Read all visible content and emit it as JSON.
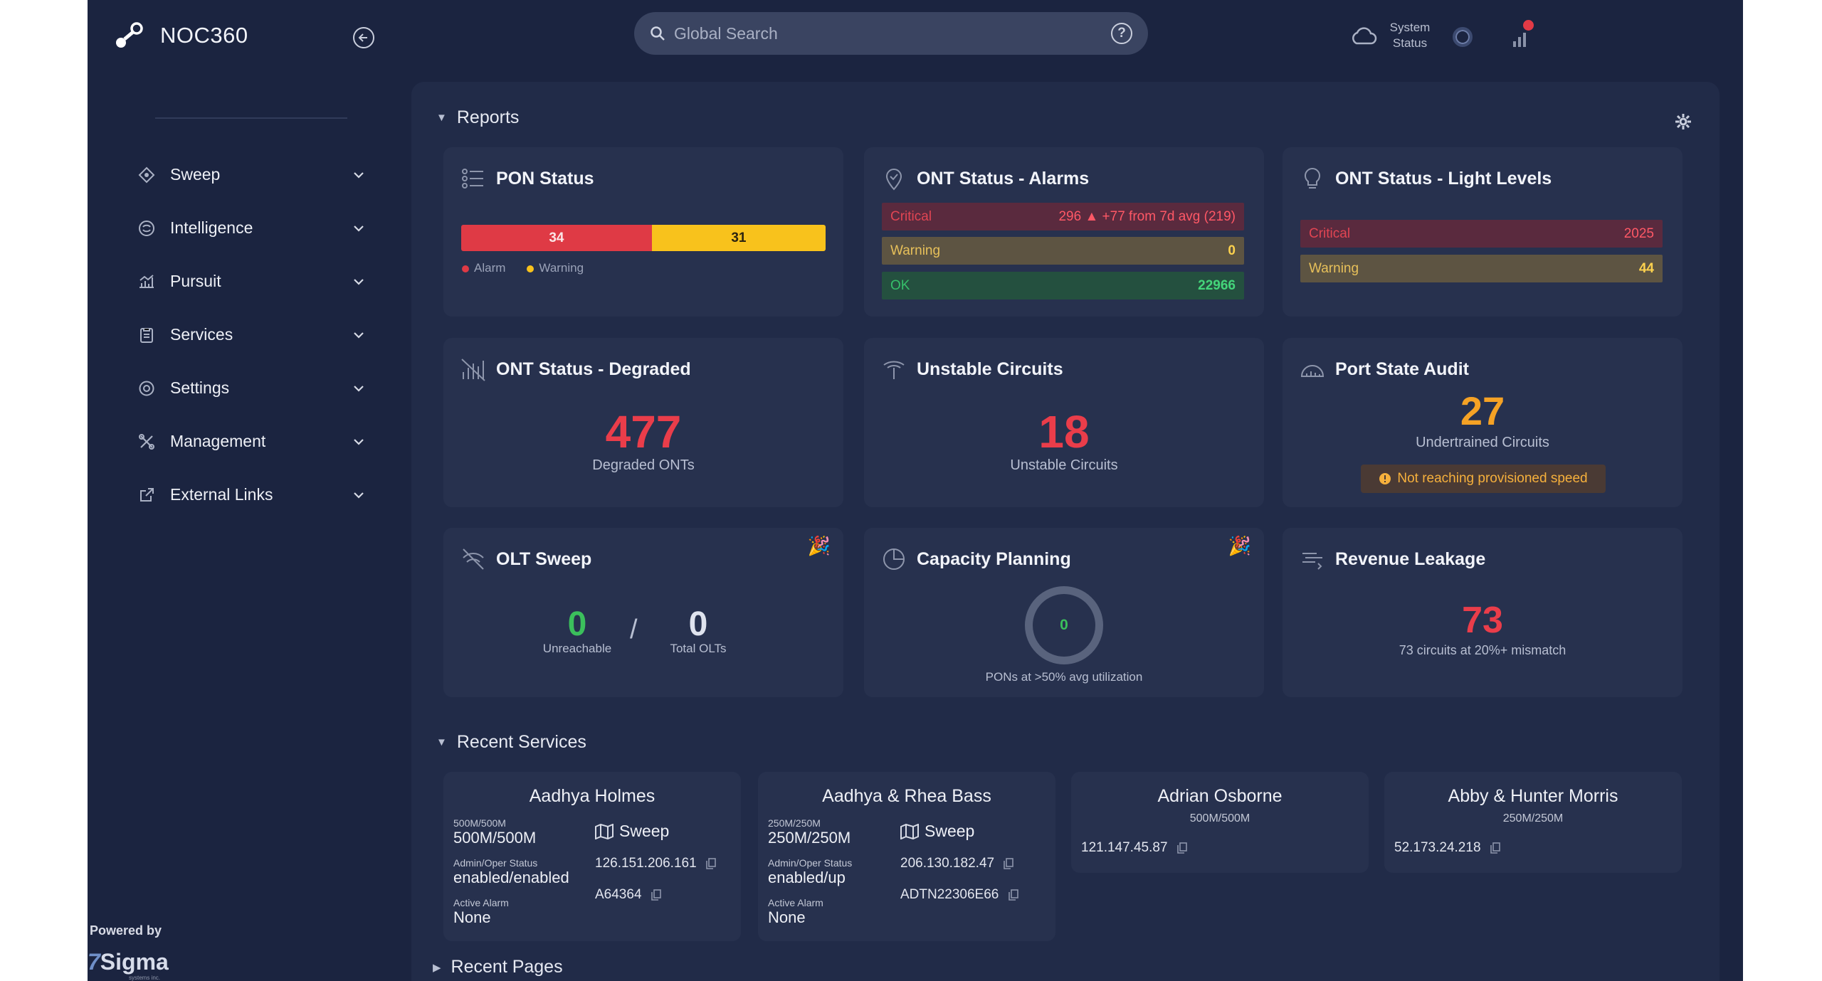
{
  "app": {
    "title": "NOC360"
  },
  "search": {
    "placeholder": "Global Search"
  },
  "header": {
    "system_status_line1": "System",
    "system_status_line2": "Status"
  },
  "sidebar": {
    "items": [
      {
        "label": "Sweep",
        "icon": "sweep-icon"
      },
      {
        "label": "Intelligence",
        "icon": "intelligence-icon"
      },
      {
        "label": "Pursuit",
        "icon": "pursuit-icon"
      },
      {
        "label": "Services",
        "icon": "services-icon"
      },
      {
        "label": "Settings",
        "icon": "settings-icon"
      },
      {
        "label": "Management",
        "icon": "management-icon"
      },
      {
        "label": "External Links",
        "icon": "external-link-icon"
      }
    ],
    "powered_by": "Powered by",
    "brand": {
      "prefix": "7",
      "name": "Sigma",
      "sub": "systems inc."
    }
  },
  "reports": {
    "title": "Reports",
    "pon_status": {
      "title": "PON Status",
      "alarm_value": "34",
      "warning_value": "31",
      "alarm_count": 34,
      "warning_count": 31,
      "legend_alarm": "Alarm",
      "legend_warning": "Warning"
    },
    "ont_alarms": {
      "title": "ONT Status - Alarms",
      "critical_label": "Critical",
      "critical_value": "296 ▲ +77 from 7d avg (219)",
      "warning_label": "Warning",
      "warning_value": "0",
      "ok_label": "OK",
      "ok_value": "22966"
    },
    "ont_light": {
      "title": "ONT Status - Light Levels",
      "critical_label": "Critical",
      "critical_value": "2025",
      "warning_label": "Warning",
      "warning_value": "44"
    },
    "ont_degraded": {
      "title": "ONT Status - Degraded",
      "value": "477",
      "label": "Degraded ONTs"
    },
    "unstable": {
      "title": "Unstable Circuits",
      "value": "18",
      "label": "Unstable Circuits"
    },
    "port_audit": {
      "title": "Port State Audit",
      "value": "27",
      "label": "Undertrained Circuits",
      "badge": "Not reaching provisioned speed"
    },
    "olt_sweep": {
      "title": "OLT Sweep",
      "unreachable": "0",
      "unreachable_label": "Unreachable",
      "slash": "/",
      "total": "0",
      "total_label": "Total OLTs"
    },
    "capacity": {
      "title": "Capacity Planning",
      "value": "0",
      "label": "PONs at >50% avg utilization"
    },
    "revenue": {
      "title": "Revenue Leakage",
      "value": "73",
      "label": "73 circuits at 20%+ mismatch"
    }
  },
  "recent_services": {
    "title": "Recent Services",
    "items": [
      {
        "name": "Aadhya Holmes",
        "speed_small": "500M/500M",
        "speed": "500M/500M",
        "status_label": "Admin/Oper Status",
        "status": "enabled/enabled",
        "alarm_label": "Active Alarm",
        "alarm": "None",
        "sweep": "Sweep",
        "ip": "126.151.206.161",
        "id": "A64364"
      },
      {
        "name": "Aadhya & Rhea Bass",
        "speed_small": "250M/250M",
        "speed": "250M/250M",
        "status_label": "Admin/Oper Status",
        "status": "enabled/up",
        "alarm_label": "Active Alarm",
        "alarm": "None",
        "sweep": "Sweep",
        "ip": "206.130.182.47",
        "id": "ADTN22306E66"
      },
      {
        "name": "Adrian Osborne",
        "speed": "500M/500M",
        "ip": "121.147.45.87"
      },
      {
        "name": "Abby & Hunter Morris",
        "speed": "250M/250M",
        "ip": "52.173.24.218"
      }
    ]
  },
  "recent_pages": {
    "title": "Recent Pages"
  },
  "colors": {
    "background": "#1b2440",
    "panel": "#212b48",
    "card": "#27314e",
    "alarm": "#df3a45",
    "warning": "#f8c21c",
    "ok": "#3bbf5c"
  }
}
